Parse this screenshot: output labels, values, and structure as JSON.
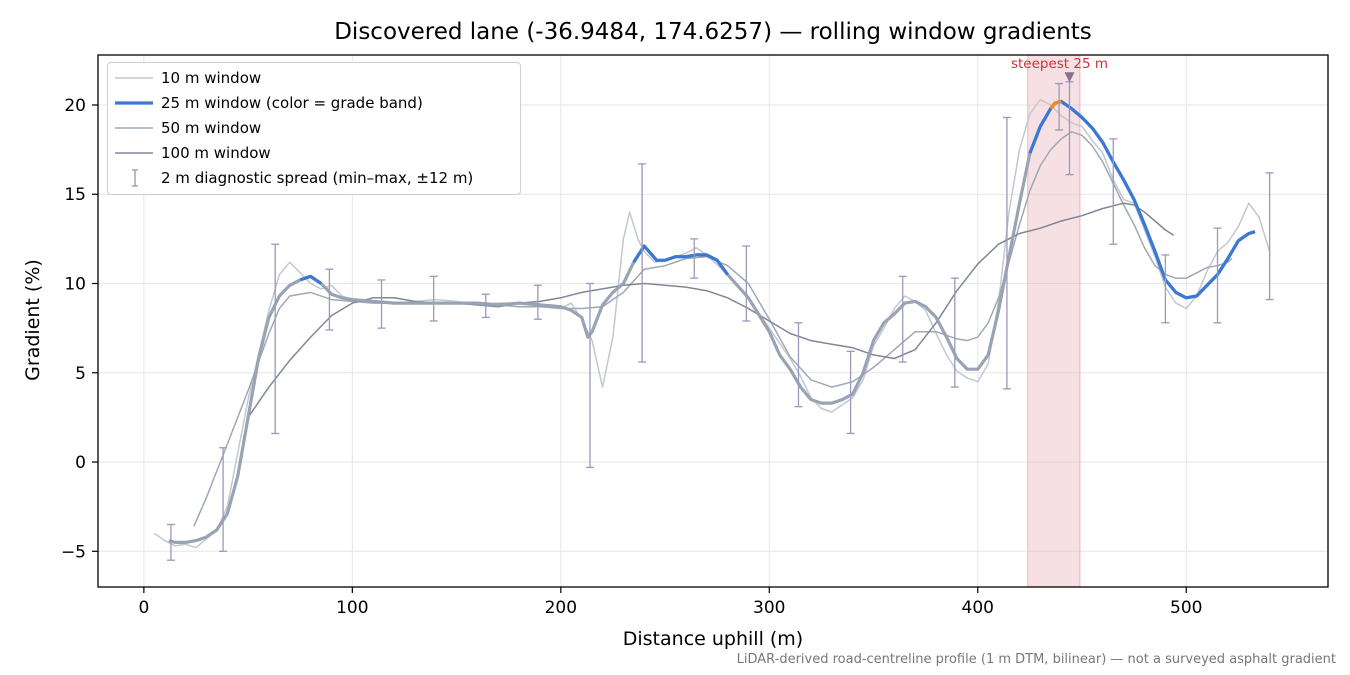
{
  "chart_data": {
    "type": "line",
    "title": "Discovered lane (-36.9484, 174.6257) — rolling window gradients",
    "xlabel": "Distance uphill (m)",
    "ylabel": "Gradient (%)",
    "xlim": [
      -22,
      568
    ],
    "ylim": [
      -7,
      22.8
    ],
    "x_ticks": [
      0,
      100,
      200,
      300,
      400,
      500
    ],
    "y_ticks": [
      -5,
      0,
      5,
      10,
      15,
      20
    ],
    "grid": true,
    "legend_position": "top-left",
    "footnote": "LiDAR-derived road-centreline profile (1 m DTM, bilinear) — not a surveyed asphalt gradient",
    "highlight_band": {
      "x": [
        424,
        449
      ],
      "color": "#e8a7ae",
      "label": "steepest 25 m",
      "marker_x": 444,
      "marker_y": 21.5
    },
    "series": [
      {
        "name": "10 m window",
        "color": "#c2c8d0",
        "x": [
          5,
          10,
          15,
          20,
          25,
          30,
          35,
          40,
          45,
          50,
          55,
          60,
          65,
          70,
          75,
          80,
          85,
          90,
          95,
          100,
          110,
          120,
          130,
          140,
          150,
          160,
          170,
          180,
          190,
          200,
          205,
          210,
          215,
          220,
          225,
          230,
          233,
          237,
          240,
          245,
          250,
          255,
          260,
          265,
          270,
          280,
          290,
          300,
          310,
          315,
          320,
          325,
          330,
          335,
          340,
          345,
          350,
          355,
          360,
          365,
          370,
          375,
          380,
          385,
          390,
          395,
          400,
          405,
          410,
          415,
          420,
          425,
          430,
          435,
          440,
          445,
          450,
          455,
          460,
          465,
          470,
          475,
          480,
          485,
          490,
          495,
          500,
          505,
          510,
          515,
          520,
          525,
          530,
          535,
          540
        ],
        "y": [
          -4.0,
          -4.4,
          -4.7,
          -4.6,
          -4.8,
          -4.3,
          -3.8,
          -2.5,
          0.5,
          3.5,
          6.0,
          8.5,
          10.5,
          11.2,
          10.6,
          10.0,
          9.7,
          9.9,
          9.3,
          9.1,
          9.0,
          8.9,
          9.0,
          9.1,
          9.0,
          8.8,
          8.9,
          8.9,
          8.8,
          8.6,
          8.9,
          8.0,
          6.8,
          4.2,
          7.0,
          12.5,
          14.0,
          12.5,
          11.8,
          11.2,
          11.3,
          11.5,
          11.7,
          12.0,
          11.6,
          10.5,
          9.2,
          7.5,
          5.8,
          4.8,
          3.6,
          3.0,
          2.8,
          3.2,
          3.6,
          4.6,
          6.5,
          7.5,
          8.6,
          9.3,
          9.0,
          8.5,
          7.2,
          6.0,
          5.1,
          4.7,
          4.5,
          5.5,
          9.0,
          14.0,
          17.5,
          19.5,
          20.3,
          20.0,
          19.4,
          19.0,
          18.8,
          18.0,
          17.3,
          15.8,
          14.7,
          14.5,
          13.0,
          11.5,
          9.8,
          8.9,
          8.6,
          9.3,
          10.7,
          11.8,
          12.3,
          13.2,
          14.5,
          13.7,
          11.8
        ]
      },
      {
        "name": "25 m window (color = grade band)",
        "color": "#3a78d6",
        "highlight_color": "#f08a1c",
        "gray_color": "#98a3b3",
        "x": [
          12,
          15,
          20,
          25,
          30,
          35,
          40,
          45,
          50,
          55,
          60,
          65,
          70,
          75,
          80,
          85,
          90,
          95,
          100,
          110,
          120,
          130,
          140,
          150,
          160,
          170,
          180,
          190,
          200,
          205,
          210,
          213,
          215,
          220,
          225,
          230,
          235,
          240,
          243,
          246,
          250,
          255,
          260,
          265,
          270,
          275,
          280,
          290,
          300,
          305,
          310,
          315,
          320,
          325,
          330,
          335,
          340,
          345,
          350,
          355,
          360,
          365,
          370,
          375,
          380,
          385,
          390,
          395,
          400,
          405,
          410,
          415,
          420,
          425,
          430,
          435,
          437,
          440,
          445,
          450,
          455,
          460,
          465,
          470,
          475,
          480,
          485,
          490,
          495,
          500,
          505,
          510,
          515,
          520,
          525,
          530,
          533
        ],
        "y": [
          -4.4,
          -4.5,
          -4.5,
          -4.4,
          -4.2,
          -3.8,
          -2.9,
          -0.8,
          2.5,
          5.8,
          8.1,
          9.3,
          9.9,
          10.2,
          10.4,
          10.0,
          9.4,
          9.2,
          9.1,
          9.0,
          8.9,
          8.9,
          8.9,
          8.9,
          8.9,
          8.8,
          8.9,
          8.8,
          8.7,
          8.5,
          8.1,
          7.0,
          7.3,
          8.8,
          9.5,
          10.0,
          11.2,
          12.1,
          11.7,
          11.3,
          11.3,
          11.5,
          11.5,
          11.6,
          11.6,
          11.3,
          10.5,
          9.2,
          7.3,
          6.0,
          5.2,
          4.2,
          3.5,
          3.3,
          3.3,
          3.5,
          3.8,
          5.0,
          6.8,
          7.8,
          8.3,
          8.9,
          9.0,
          8.7,
          8.1,
          7.0,
          5.8,
          5.2,
          5.2,
          6.0,
          8.5,
          11.5,
          14.5,
          17.3,
          18.8,
          19.8,
          20.1,
          20.2,
          19.8,
          19.3,
          18.7,
          17.9,
          16.8,
          15.8,
          14.7,
          13.3,
          11.8,
          10.2,
          9.5,
          9.2,
          9.3,
          9.9,
          10.5,
          11.4,
          12.4,
          12.8,
          12.9
        ],
        "highlight_x": [
          433,
          440
        ],
        "blue_ranges": [
          [
            74,
            86
          ],
          [
            234,
            286
          ],
          [
            421,
            533
          ]
        ]
      },
      {
        "name": "50 m window",
        "color": "#a0a8b4",
        "x": [
          24,
          30,
          35,
          40,
          45,
          50,
          55,
          60,
          65,
          70,
          80,
          90,
          100,
          110,
          120,
          130,
          140,
          150,
          160,
          170,
          180,
          190,
          200,
          210,
          220,
          230,
          240,
          250,
          260,
          270,
          280,
          290,
          300,
          310,
          320,
          330,
          340,
          350,
          360,
          370,
          380,
          390,
          395,
          400,
          405,
          410,
          415,
          420,
          425,
          430,
          435,
          440,
          445,
          450,
          455,
          460,
          465,
          470,
          475,
          480,
          485,
          490,
          495,
          500,
          505,
          510,
          515,
          520,
          522
        ],
        "y": [
          -3.6,
          -2.0,
          -0.5,
          1.0,
          2.5,
          4.0,
          5.6,
          7.2,
          8.6,
          9.3,
          9.5,
          9.1,
          9.0,
          8.9,
          8.9,
          8.9,
          8.9,
          8.9,
          8.8,
          8.8,
          8.7,
          8.7,
          8.6,
          8.6,
          8.7,
          9.5,
          10.8,
          11.0,
          11.4,
          11.5,
          11.0,
          10.0,
          8.0,
          5.9,
          4.6,
          4.2,
          4.5,
          5.3,
          6.3,
          7.3,
          7.3,
          6.9,
          6.8,
          7.0,
          7.8,
          9.2,
          11.2,
          13.3,
          15.2,
          16.6,
          17.5,
          18.1,
          18.5,
          18.3,
          17.7,
          16.8,
          15.6,
          14.4,
          13.3,
          12.0,
          11.0,
          10.5,
          10.3,
          10.3,
          10.6,
          10.9,
          11.0,
          11.2,
          11.4
        ]
      },
      {
        "name": "100 m window",
        "color": "#7f8796",
        "x": [
          50,
          60,
          70,
          80,
          90,
          100,
          110,
          120,
          130,
          140,
          150,
          160,
          170,
          180,
          190,
          200,
          210,
          220,
          230,
          240,
          250,
          260,
          270,
          280,
          290,
          300,
          310,
          320,
          330,
          340,
          350,
          360,
          370,
          380,
          390,
          400,
          410,
          420,
          430,
          440,
          450,
          460,
          470,
          475,
          480,
          485,
          490,
          494
        ],
        "y": [
          2.5,
          4.2,
          5.7,
          7.0,
          8.2,
          8.9,
          9.2,
          9.2,
          9.0,
          8.9,
          8.9,
          8.8,
          8.7,
          8.9,
          9.0,
          9.2,
          9.5,
          9.7,
          9.9,
          10.0,
          9.9,
          9.8,
          9.6,
          9.2,
          8.6,
          7.9,
          7.2,
          6.8,
          6.6,
          6.4,
          6.0,
          5.8,
          6.3,
          7.8,
          9.6,
          11.1,
          12.2,
          12.8,
          13.1,
          13.5,
          13.8,
          14.2,
          14.5,
          14.4,
          14.0,
          13.5,
          13.0,
          12.7
        ]
      }
    ],
    "error_bars": {
      "name": "2 m diagnostic spread (min–max, ±12 m)",
      "color": "#9b98bd",
      "x": [
        13,
        38,
        63,
        89,
        114,
        139,
        164,
        189,
        214,
        239,
        264,
        289,
        314,
        339,
        364,
        389,
        414,
        439,
        444,
        465,
        490,
        515,
        540
      ],
      "y": [
        -4.5,
        -3.0,
        9.5,
        9.9,
        9.0,
        9.0,
        8.9,
        8.9,
        7.0,
        10.8,
        11.6,
        10.0,
        5.0,
        3.5,
        9.0,
        6.9,
        9.3,
        20.0,
        17.8,
        16.3,
        9.8,
        10.5,
        12.6
      ],
      "ymin": [
        -5.5,
        -5.0,
        1.6,
        7.4,
        7.5,
        7.9,
        8.1,
        8.0,
        -0.3,
        5.6,
        10.3,
        7.9,
        3.1,
        1.6,
        5.6,
        4.2,
        4.1,
        18.6,
        16.1,
        12.2,
        7.8,
        7.8,
        9.1
      ],
      "ymax": [
        -3.5,
        0.8,
        12.2,
        10.8,
        10.2,
        10.4,
        9.4,
        9.9,
        10.0,
        16.7,
        12.5,
        12.1,
        7.8,
        6.2,
        10.4,
        10.3,
        19.3,
        21.2,
        21.3,
        18.1,
        11.6,
        13.1,
        16.2
      ]
    }
  }
}
